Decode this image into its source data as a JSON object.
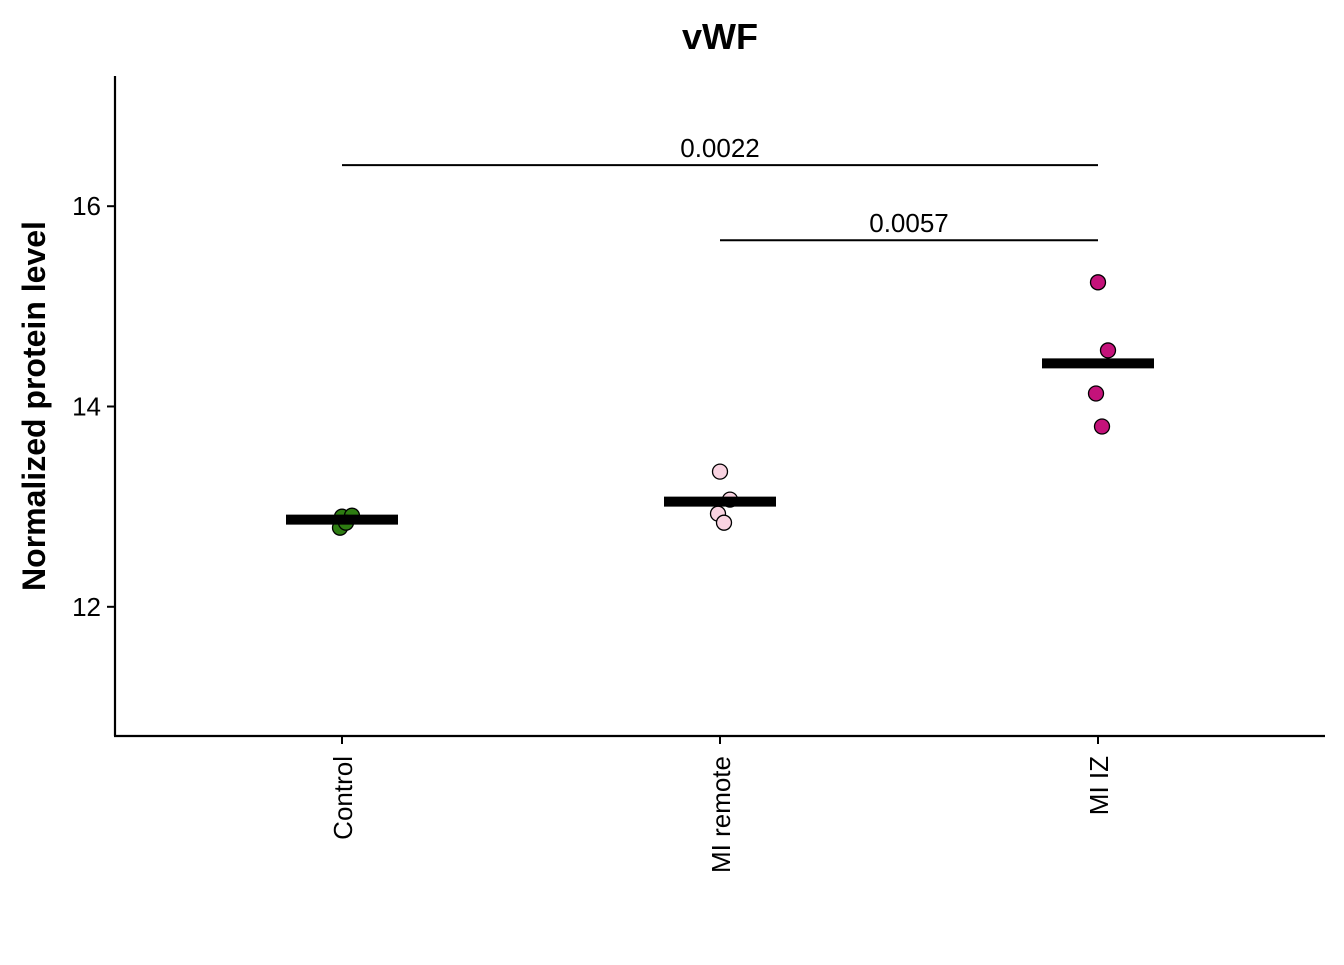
{
  "chart_data": {
    "type": "dot",
    "title": "vWF",
    "y_label": "Normalized protein level",
    "categories": [
      "Control",
      "MI remote",
      "MI IZ"
    ],
    "colors": [
      "#2e7d12",
      "#f9d3e1",
      "#c4127a"
    ],
    "points": [
      [
        12.9,
        12.91,
        12.79,
        12.84
      ],
      [
        13.35,
        13.07,
        12.93,
        12.84
      ],
      [
        15.24,
        14.56,
        14.13,
        13.8
      ]
    ],
    "means": [
      12.87,
      13.05,
      14.43
    ],
    "brackets": [
      {
        "label": "0.0022",
        "from": "Control",
        "to": "MI IZ",
        "y": 16.41
      },
      {
        "label": "0.0057",
        "from": "MI remote",
        "to": "MI IZ",
        "y": 15.66
      }
    ],
    "ylim": [
      10.71,
      17.3
    ],
    "yticks": [
      12,
      14,
      16
    ]
  }
}
